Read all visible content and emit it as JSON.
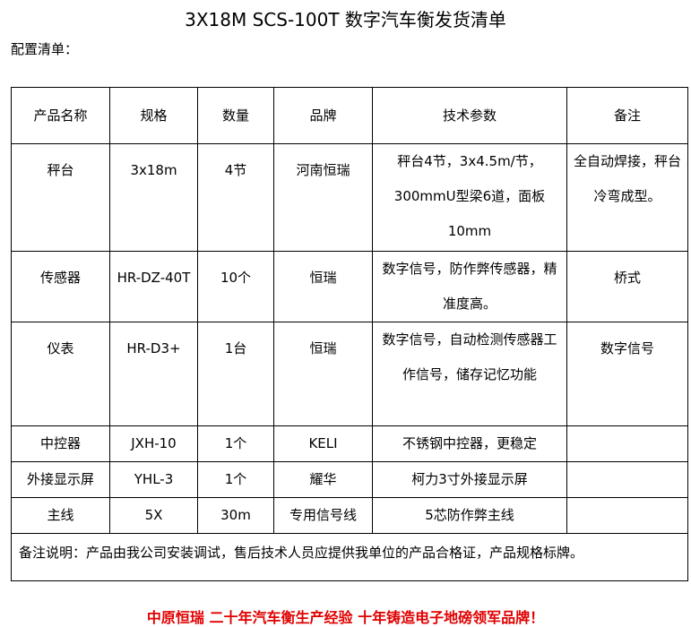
{
  "title": "3X18M SCS-100T 数字汽车衡发货清单",
  "subtitle": "配置清单：",
  "headers": [
    "产品名称",
    "规格",
    "数量",
    "品牌",
    "技术参数",
    "备注"
  ],
  "rows": [
    [
      "秤台",
      "3x18m",
      "4节",
      "河南恒瑞",
      "秤台4节，3x4.5m/节，300mmU型梁6道，面板10mm",
      "全自动焊接，秤台冷弯成型。"
    ],
    [
      "传感器",
      "HR-DZ-40T",
      "10个",
      "恒瑞",
      "数字信号，防作弊传感器，精准度高。",
      "桥式"
    ],
    [
      "仪表",
      "HR-D3+",
      "1台",
      "恒瑞",
      "数字信号，自动检测传感器工作信号，储存记忆功能",
      "数字信号"
    ],
    [
      "中控器",
      "JXH-10",
      "1个",
      "KELI",
      "不锈钢中控器，更稳定",
      ""
    ],
    [
      "外接显示屏",
      "YHL-3",
      "1个",
      "耀华",
      "柯力3寸外接显示屏",
      ""
    ],
    [
      "主线",
      "5X",
      "30m",
      "专用信号线",
      "5芯防作弊主线",
      ""
    ]
  ],
  "note": "备注说明：产品由我公司安装调试，售后技术人员应提供我单位的产品合格证，产品规格标牌。",
  "slogan": "中原恒瑞 二十年汽车衡生产经验 十年铸造电子地磅领军品牌！",
  "colors": {
    "slogan": "#e00000"
  }
}
